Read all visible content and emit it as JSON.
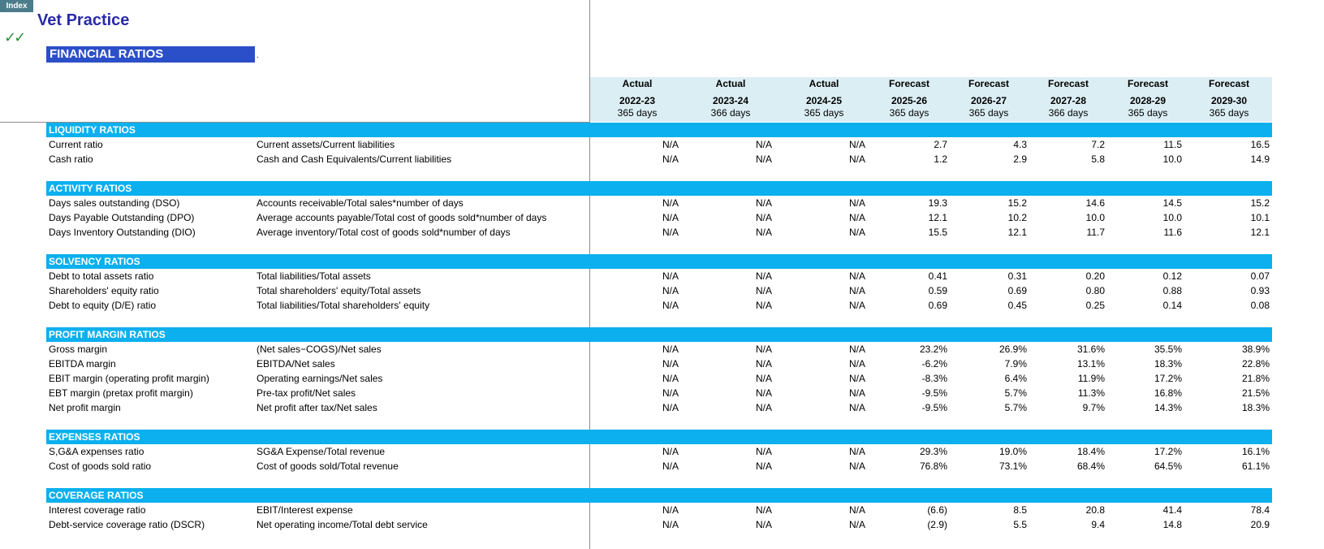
{
  "nav": {
    "index_label": "Index"
  },
  "app": {
    "title": "Vet Practice",
    "check_glyph": "✓✓"
  },
  "sheet": {
    "heading": "FINANCIAL RATIOS",
    "heading_suffix": "."
  },
  "periods": [
    {
      "kind": "Actual",
      "year": "2022-23",
      "days": "365 days"
    },
    {
      "kind": "Actual",
      "year": "2023-24",
      "days": "366 days"
    },
    {
      "kind": "Actual",
      "year": "2024-25",
      "days": "365 days"
    },
    {
      "kind": "Forecast",
      "year": "2025-26",
      "days": "365 days"
    },
    {
      "kind": "Forecast",
      "year": "2026-27",
      "days": "365 days"
    },
    {
      "kind": "Forecast",
      "year": "2027-28",
      "days": "366 days"
    },
    {
      "kind": "Forecast",
      "year": "2028-29",
      "days": "365 days"
    },
    {
      "kind": "Forecast",
      "year": "2029-30",
      "days": "365 days"
    }
  ],
  "sections": [
    {
      "title": "LIQUIDITY RATIOS",
      "rows": [
        {
          "label": "Current ratio",
          "formula": "Current assets/Current liabilities",
          "values": [
            "N/A",
            "N/A",
            "N/A",
            "2.7",
            "4.3",
            "7.2",
            "11.5",
            "16.5"
          ]
        },
        {
          "label": "Cash ratio",
          "formula": "Cash and Cash Equivalents/Current liabilities",
          "values": [
            "N/A",
            "N/A",
            "N/A",
            "1.2",
            "2.9",
            "5.8",
            "10.0",
            "14.9"
          ]
        }
      ]
    },
    {
      "title": "ACTIVITY RATIOS",
      "rows": [
        {
          "label": "Days sales outstanding (DSO)",
          "formula": "Accounts receivable/Total sales*number of days",
          "values": [
            "N/A",
            "N/A",
            "N/A",
            "19.3",
            "15.2",
            "14.6",
            "14.5",
            "15.2"
          ]
        },
        {
          "label": "Days Payable Outstanding (DPO)",
          "formula": "Average accounts payable/Total cost of goods sold*number of days",
          "values": [
            "N/A",
            "N/A",
            "N/A",
            "12.1",
            "10.2",
            "10.0",
            "10.0",
            "10.1"
          ]
        },
        {
          "label": "Days Inventory Outstanding (DIO)",
          "formula": "Average inventory/Total cost of goods sold*number of days",
          "values": [
            "N/A",
            "N/A",
            "N/A",
            "15.5",
            "12.1",
            "11.7",
            "11.6",
            "12.1"
          ]
        }
      ]
    },
    {
      "title": "SOLVENCY RATIOS",
      "rows": [
        {
          "label": "Debt to total assets ratio",
          "formula": "Total liabilities/Total assets",
          "values": [
            "N/A",
            "N/A",
            "N/A",
            "0.41",
            "0.31",
            "0.20",
            "0.12",
            "0.07"
          ]
        },
        {
          "label": "Shareholders' equity ratio",
          "formula": "Total shareholders' equity/Total assets",
          "values": [
            "N/A",
            "N/A",
            "N/A",
            "0.59",
            "0.69",
            "0.80",
            "0.88",
            "0.93"
          ]
        },
        {
          "label": "Debt to equity (D/E) ratio",
          "formula": "Total liabilities/Total shareholders' equity",
          "values": [
            "N/A",
            "N/A",
            "N/A",
            "0.69",
            "0.45",
            "0.25",
            "0.14",
            "0.08"
          ]
        }
      ]
    },
    {
      "title": "PROFIT MARGIN RATIOS",
      "rows": [
        {
          "label": "Gross margin",
          "formula": "(Net sales−COGS)/Net sales",
          "values": [
            "N/A",
            "N/A",
            "N/A",
            "23.2%",
            "26.9%",
            "31.6%",
            "35.5%",
            "38.9%"
          ]
        },
        {
          "label": "EBITDA margin",
          "formula": "EBITDA/Net sales",
          "values": [
            "N/A",
            "N/A",
            "N/A",
            "-6.2%",
            "7.9%",
            "13.1%",
            "18.3%",
            "22.8%"
          ]
        },
        {
          "label": "EBIT margin (operating profit margin)",
          "formula": "Operating earnings/Net sales",
          "values": [
            "N/A",
            "N/A",
            "N/A",
            "-8.3%",
            "6.4%",
            "11.9%",
            "17.2%",
            "21.8%"
          ]
        },
        {
          "label": "EBT margin (pretax profit margin)",
          "formula": "Pre-tax profit/Net sales",
          "values": [
            "N/A",
            "N/A",
            "N/A",
            "-9.5%",
            "5.7%",
            "11.3%",
            "16.8%",
            "21.5%"
          ]
        },
        {
          "label": "Net profit margin",
          "formula": "Net profit after tax/Net sales",
          "values": [
            "N/A",
            "N/A",
            "N/A",
            "-9.5%",
            "5.7%",
            "9.7%",
            "14.3%",
            "18.3%"
          ]
        }
      ]
    },
    {
      "title": "EXPENSES RATIOS",
      "rows": [
        {
          "label": "S,G&A expenses ratio",
          "formula": "SG&A Expense/Total revenue",
          "values": [
            "N/A",
            "N/A",
            "N/A",
            "29.3%",
            "19.0%",
            "18.4%",
            "17.2%",
            "16.1%"
          ]
        },
        {
          "label": "Cost of goods sold ratio",
          "formula": "Cost of goods sold/Total revenue",
          "values": [
            "N/A",
            "N/A",
            "N/A",
            "76.8%",
            "73.1%",
            "68.4%",
            "64.5%",
            "61.1%"
          ]
        }
      ]
    },
    {
      "title": "COVERAGE RATIOS",
      "rows": [
        {
          "label": "Interest coverage ratio",
          "formula": "EBIT/Interest expense",
          "values": [
            "N/A",
            "N/A",
            "N/A",
            "(6.6)",
            "8.5",
            "20.8",
            "41.4",
            "78.4"
          ]
        },
        {
          "label": "Debt-service coverage ratio (DSCR)",
          "formula": "Net operating income/Total debt service",
          "values": [
            "N/A",
            "N/A",
            "N/A",
            "(2.9)",
            "5.5",
            "9.4",
            "14.8",
            "20.9"
          ]
        }
      ]
    }
  ]
}
